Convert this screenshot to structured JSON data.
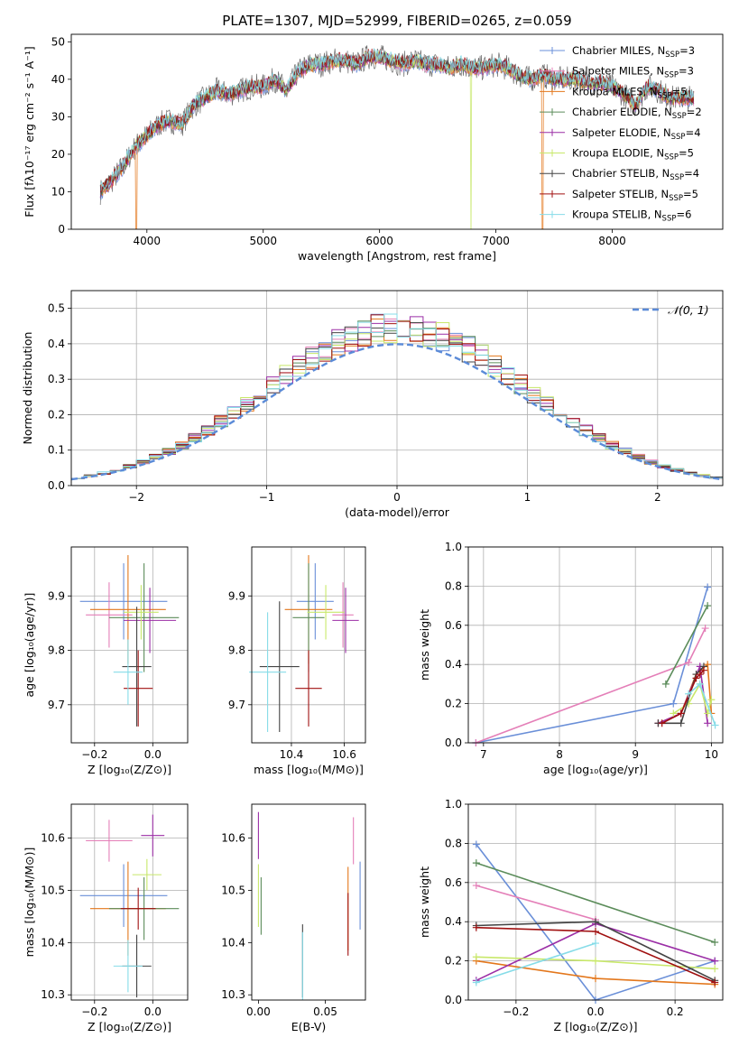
{
  "figure_title": "PLATE=1307, MJD=52999, FIBERID=0265, z=0.059",
  "colors": {
    "chabrier_miles": "#6a8fd8",
    "salpeter_miles": "#e47fb8",
    "kroupa_miles": "#e3771c",
    "chabrier_elodie": "#5b8c5a",
    "salpeter_elodie": "#9b2ea6",
    "kroupa_elodie": "#c8e86a",
    "chabrier_stelib": "#444444",
    "salpeter_stelib": "#a01010",
    "kroupa_stelib": "#86dce8",
    "data_spectrum": "#6d6d6d",
    "gaussian": "#5b8bd8"
  },
  "chart_data": [
    {
      "id": "spectrum",
      "type": "line",
      "xlabel": "wavelength [Angstrom, rest frame]",
      "ylabel": "Flux [fλ10⁻¹⁷ erg cm⁻² s⁻¹ A⁻¹]",
      "xlim": [
        3350,
        8950
      ],
      "ylim": [
        0,
        52
      ],
      "xticks": [
        4000,
        5000,
        6000,
        7000,
        8000
      ],
      "yticks": [
        0,
        10,
        20,
        30,
        40,
        50
      ],
      "legend_position": "top-right",
      "legend": [
        "Chabrier MILES, N_SSP=3",
        "Salpeter MILES, N_SSP=3",
        "Kroupa MILES, N_SSP=5",
        "Chabrier ELODIE, N_SSP=2",
        "Salpeter ELODIE, N_SSP=4",
        "Kroupa ELODIE, N_SSP=5",
        "Chabrier STELIB, N_SSP=4",
        "Salpeter STELIB, N_SSP=5",
        "Kroupa STELIB, N_SSP=6"
      ],
      "continuum": {
        "x": [
          3600,
          3700,
          3800,
          3900,
          4000,
          4100,
          4200,
          4300,
          4400,
          4500,
          4600,
          4700,
          4800,
          4900,
          5000,
          5100,
          5200,
          5300,
          5400,
          5500,
          5600,
          5700,
          5800,
          5900,
          6000,
          6100,
          6200,
          6300,
          6400,
          6500,
          6600,
          6700,
          6800,
          6900,
          7000,
          7100,
          7200,
          7300,
          7400,
          7500,
          7600,
          7700,
          7800,
          7900,
          8000,
          8100,
          8200,
          8300,
          8400,
          8500,
          8600,
          8700
        ],
        "y": [
          10,
          13,
          17,
          22,
          25,
          28,
          29,
          28,
          33,
          35,
          37,
          36,
          37,
          38,
          38,
          40,
          37,
          42,
          44,
          44,
          45,
          45,
          44,
          46,
          46,
          45,
          44,
          45,
          44,
          44,
          43,
          44,
          43,
          43,
          44,
          43,
          41,
          40,
          41,
          40,
          40,
          40,
          39,
          39,
          38,
          36,
          33,
          38,
          37,
          35,
          35,
          35
        ]
      }
    },
    {
      "id": "residuals",
      "type": "line",
      "xlabel": "(data-model)/error",
      "ylabel": "Normed distribution",
      "xlim": [
        -2.5,
        2.5
      ],
      "ylim": [
        0,
        0.55
      ],
      "xticks": [
        -2,
        -1,
        0,
        1,
        2
      ],
      "yticks": [
        0.0,
        0.1,
        0.2,
        0.3,
        0.4,
        0.5
      ],
      "grid": true,
      "legend_position": "top-right",
      "legend": [
        "𝒩(0, 1)"
      ]
    },
    {
      "id": "age_vs_Z",
      "type": "scatter",
      "xlabel": "Z [log₁₀(Z/Z⊙)]",
      "ylabel": "age  [log₁₀(age/yr)]",
      "xlim": [
        -0.28,
        0.12
      ],
      "ylim": [
        9.63,
        9.99
      ],
      "xticks": [
        -0.2,
        0.0
      ],
      "yticks": [
        9.7,
        9.8,
        9.9
      ],
      "grid": true,
      "points": [
        {
          "x": -0.1,
          "y": 9.89,
          "xerr": 0.15,
          "yerr": 0.07
        },
        {
          "x": -0.15,
          "y": 9.865,
          "xerr": 0.08,
          "yerr": 0.06
        },
        {
          "x": -0.085,
          "y": 9.875,
          "xerr": 0.13,
          "yerr": 0.1
        },
        {
          "x": -0.03,
          "y": 9.86,
          "xerr": 0.12,
          "yerr": 0.1
        },
        {
          "x": -0.01,
          "y": 9.855,
          "xerr": 0.09,
          "yerr": 0.06
        },
        {
          "x": -0.04,
          "y": 9.87,
          "xerr": 0.06,
          "yerr": 0.05
        },
        {
          "x": -0.055,
          "y": 9.77,
          "xerr": 0.05,
          "yerr": 0.11
        },
        {
          "x": -0.05,
          "y": 9.73,
          "xerr": 0.05,
          "yerr": 0.07
        },
        {
          "x": -0.085,
          "y": 9.76,
          "xerr": 0.05,
          "yerr": 0.06
        }
      ]
    },
    {
      "id": "age_vs_mass",
      "type": "scatter",
      "xlabel": "mass [log₁₀(M/M⊙)]",
      "ylabel": "",
      "xlim": [
        10.25,
        10.68
      ],
      "ylim": [
        9.63,
        9.99
      ],
      "xticks": [
        10.4,
        10.6
      ],
      "yticks": [
        9.7,
        9.8,
        9.9
      ],
      "grid": true,
      "points": [
        {
          "x": 10.49,
          "y": 9.89,
          "xerr": 0.07,
          "yerr": 0.07
        },
        {
          "x": 10.595,
          "y": 9.865,
          "xerr": 0.04,
          "yerr": 0.06
        },
        {
          "x": 10.465,
          "y": 9.875,
          "xerr": 0.09,
          "yerr": 0.1
        },
        {
          "x": 10.465,
          "y": 9.86,
          "xerr": 0.06,
          "yerr": 0.1
        },
        {
          "x": 10.605,
          "y": 9.855,
          "xerr": 0.05,
          "yerr": 0.06
        },
        {
          "x": 10.53,
          "y": 9.87,
          "xerr": 0.07,
          "yerr": 0.05
        },
        {
          "x": 10.355,
          "y": 9.77,
          "xerr": 0.075,
          "yerr": 0.12
        },
        {
          "x": 10.465,
          "y": 9.73,
          "xerr": 0.05,
          "yerr": 0.07
        },
        {
          "x": 10.31,
          "y": 9.76,
          "xerr": 0.07,
          "yerr": 0.11
        }
      ]
    },
    {
      "id": "weight_vs_age",
      "type": "line",
      "xlabel": "age  [log₁₀(age/yr)]",
      "ylabel": "mass weight",
      "xlim": [
        6.8,
        10.15
      ],
      "ylim": [
        0,
        1.0
      ],
      "xticks": [
        7,
        8,
        9,
        10
      ],
      "yticks": [
        0.0,
        0.2,
        0.4,
        0.6,
        0.8,
        1.0
      ],
      "grid": true,
      "series": [
        {
          "x": [
            6.9,
            9.5,
            9.95
          ],
          "y": [
            0.0,
            0.2,
            0.795
          ]
        },
        {
          "x": [
            6.9,
            9.7,
            9.92
          ],
          "y": [
            0.0,
            0.41,
            0.585
          ]
        },
        {
          "x": [
            9.3,
            9.6,
            9.8,
            9.95,
            10.0
          ],
          "y": [
            0.1,
            0.15,
            0.35,
            0.4,
            0.15
          ]
        },
        {
          "x": [
            9.4,
            9.95
          ],
          "y": [
            0.3,
            0.7
          ]
        },
        {
          "x": [
            9.3,
            9.6,
            9.85,
            9.95
          ],
          "y": [
            0.1,
            0.15,
            0.39,
            0.1
          ]
        },
        {
          "x": [
            9.5,
            9.7,
            9.85,
            9.95,
            10.0
          ],
          "y": [
            0.15,
            0.2,
            0.3,
            0.15,
            0.22
          ]
        },
        {
          "x": [
            9.3,
            9.6,
            9.8,
            9.9
          ],
          "y": [
            0.1,
            0.1,
            0.35,
            0.39
          ]
        },
        {
          "x": [
            9.35,
            9.6,
            9.8,
            9.85,
            9.9
          ],
          "y": [
            0.1,
            0.15,
            0.33,
            0.35,
            0.37
          ]
        },
        {
          "x": [
            9.7,
            9.85,
            10.05
          ],
          "y": [
            0.25,
            0.3,
            0.09
          ]
        }
      ]
    },
    {
      "id": "mass_vs_Z",
      "type": "scatter",
      "xlabel": "Z [log₁₀(Z/Z⊙)]",
      "ylabel": "mass [log₁₀(M/M⊙)]",
      "xlim": [
        -0.28,
        0.12
      ],
      "ylim": [
        10.29,
        10.665
      ],
      "xticks": [
        -0.2,
        0.0
      ],
      "yticks": [
        10.3,
        10.4,
        10.5,
        10.6
      ],
      "grid": true,
      "points": [
        {
          "x": -0.1,
          "y": 10.49,
          "xerr": 0.15,
          "yerr": 0.06
        },
        {
          "x": -0.15,
          "y": 10.595,
          "xerr": 0.08,
          "yerr": 0.04
        },
        {
          "x": -0.085,
          "y": 10.465,
          "xerr": 0.13,
          "yerr": 0.09
        },
        {
          "x": -0.03,
          "y": 10.465,
          "xerr": 0.12,
          "yerr": 0.06
        },
        {
          "x": 0.0,
          "y": 10.605,
          "xerr": 0.04,
          "yerr": 0.04
        },
        {
          "x": -0.02,
          "y": 10.53,
          "xerr": 0.05,
          "yerr": 0.03
        },
        {
          "x": -0.055,
          "y": 10.355,
          "xerr": 0.05,
          "yerr": 0.06
        },
        {
          "x": -0.05,
          "y": 10.465,
          "xerr": 0.06,
          "yerr": 0.04
        },
        {
          "x": -0.085,
          "y": 10.355,
          "xerr": 0.05,
          "yerr": 0.05
        }
      ]
    },
    {
      "id": "mass_vs_ebv",
      "type": "scatter",
      "xlabel": "E(B-V)",
      "ylabel": "",
      "xlim": [
        -0.005,
        0.08
      ],
      "ylim": [
        10.29,
        10.665
      ],
      "xticks": [
        0.0,
        0.05
      ],
      "yticks": [
        10.3,
        10.4,
        10.5,
        10.6
      ],
      "grid": false,
      "points": [
        {
          "x": 0.076,
          "y": 10.49,
          "xerr": 0,
          "yerr": 0.065
        },
        {
          "x": 0.071,
          "y": 10.595,
          "xerr": 0,
          "yerr": 0.045
        },
        {
          "x": 0.067,
          "y": 10.465,
          "xerr": 0,
          "yerr": 0.08
        },
        {
          "x": 0.002,
          "y": 10.47,
          "xerr": 0,
          "yerr": 0.055
        },
        {
          "x": 0.0,
          "y": 10.605,
          "xerr": 0,
          "yerr": 0.045
        },
        {
          "x": 0.0,
          "y": 10.49,
          "xerr": 0,
          "yerr": 0.06
        },
        {
          "x": 0.033,
          "y": 10.365,
          "xerr": 0,
          "yerr": 0.07
        },
        {
          "x": 0.067,
          "y": 10.435,
          "xerr": 0,
          "yerr": 0.06
        },
        {
          "x": 0.033,
          "y": 10.355,
          "xerr": 0,
          "yerr": 0.065
        }
      ]
    },
    {
      "id": "weight_vs_Z",
      "type": "line",
      "xlabel": "Z [log₁₀(Z/Z⊙)]",
      "ylabel": "mass weight",
      "xlim": [
        -0.32,
        0.32
      ],
      "ylim": [
        0,
        1.0
      ],
      "xticks": [
        -0.2,
        0.0,
        0.2
      ],
      "yticks": [
        0.0,
        0.2,
        0.4,
        0.6,
        0.8,
        1.0
      ],
      "grid": true,
      "series": [
        {
          "x": [
            -0.3,
            0.0,
            0.3
          ],
          "y": [
            0.795,
            0.0,
            0.2
          ]
        },
        {
          "x": [
            -0.3,
            0.0
          ],
          "y": [
            0.585,
            0.41
          ]
        },
        {
          "x": [
            -0.3,
            0.0,
            0.3
          ],
          "y": [
            0.2,
            0.11,
            0.08
          ]
        },
        {
          "x": [
            -0.3,
            0.3
          ],
          "y": [
            0.7,
            0.295
          ]
        },
        {
          "x": [
            -0.3,
            0.0,
            0.3
          ],
          "y": [
            0.1,
            0.39,
            0.2
          ]
        },
        {
          "x": [
            -0.3,
            0.0,
            0.3
          ],
          "y": [
            0.22,
            0.2,
            0.16
          ]
        },
        {
          "x": [
            -0.3,
            0.0,
            0.3
          ],
          "y": [
            0.38,
            0.4,
            0.1
          ]
        },
        {
          "x": [
            -0.3,
            0.0,
            0.3
          ],
          "y": [
            0.37,
            0.35,
            0.09
          ]
        },
        {
          "x": [
            -0.3,
            0.0
          ],
          "y": [
            0.09,
            0.29
          ]
        }
      ]
    }
  ]
}
